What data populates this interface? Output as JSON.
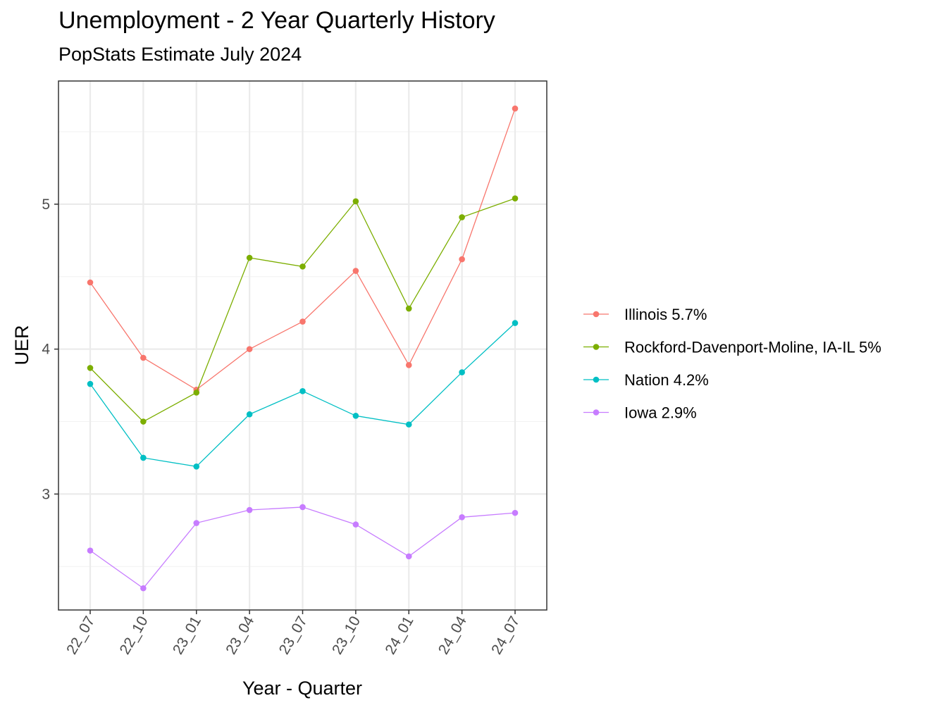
{
  "chart_data": {
    "type": "line",
    "title": "Unemployment - 2 Year Quarterly History",
    "subtitle": "PopStats Estimate July 2024",
    "xlabel": "Year - Quarter",
    "ylabel": "UER",
    "categories": [
      "22_07",
      "22_10",
      "23_01",
      "23_04",
      "23_07",
      "23_10",
      "24_01",
      "24_04",
      "24_07"
    ],
    "ylim": [
      2.2,
      5.85
    ],
    "yticks": [
      3,
      4,
      5
    ],
    "grid": true,
    "legend_position": "right",
    "series": [
      {
        "name": "Illinois 5.7%",
        "color": "#F8766D",
        "values": [
          4.46,
          3.94,
          3.72,
          4.0,
          4.19,
          4.54,
          3.89,
          4.62,
          5.66
        ]
      },
      {
        "name": "Rockford-Davenport-Moline, IA-IL 5%",
        "color": "#7CAE00",
        "values": [
          3.87,
          3.5,
          3.7,
          4.63,
          4.57,
          5.02,
          4.28,
          4.91,
          5.04
        ]
      },
      {
        "name": "Nation 4.2%",
        "color": "#00BFC4",
        "values": [
          3.76,
          3.25,
          3.19,
          3.55,
          3.71,
          3.54,
          3.48,
          3.84,
          4.18
        ]
      },
      {
        "name": "Iowa 2.9%",
        "color": "#C77CFF",
        "values": [
          2.61,
          2.35,
          2.8,
          2.89,
          2.91,
          2.79,
          2.57,
          2.84,
          2.87
        ]
      }
    ]
  }
}
